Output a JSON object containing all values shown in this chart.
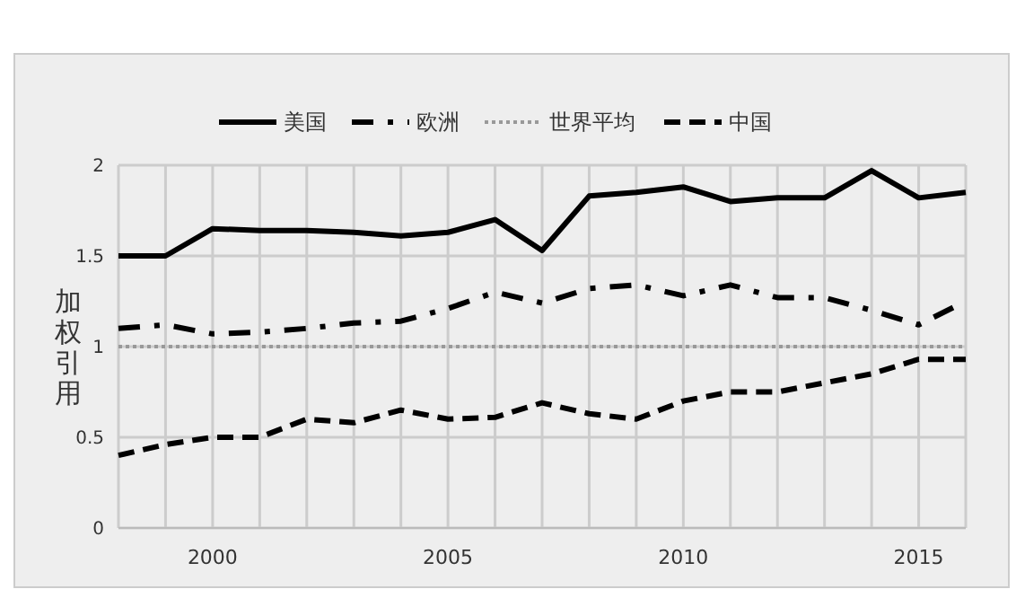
{
  "chart_data": {
    "type": "line",
    "ylabel": "加权引用",
    "x": [
      1998,
      1999,
      2000,
      2001,
      2002,
      2003,
      2004,
      2005,
      2006,
      2007,
      2008,
      2009,
      2010,
      2011,
      2012,
      2013,
      2014,
      2015,
      2016
    ],
    "series": [
      {
        "name": "美国",
        "color": "#000000",
        "line_style": "solid",
        "values": [
          1.5,
          1.5,
          1.65,
          1.64,
          1.64,
          1.63,
          1.61,
          1.63,
          1.7,
          1.53,
          1.83,
          1.85,
          1.88,
          1.8,
          1.82,
          1.82,
          1.97,
          1.82,
          1.85
        ]
      },
      {
        "name": "欧洲",
        "color": "#000000",
        "line_style": "dashdot",
        "values": [
          1.1,
          1.12,
          1.07,
          1.08,
          1.1,
          1.13,
          1.14,
          1.21,
          1.3,
          1.24,
          1.32,
          1.34,
          1.28,
          1.34,
          1.27,
          1.27,
          1.2,
          1.12,
          1.25
        ]
      },
      {
        "name": "世界平均",
        "color": "#999999",
        "line_style": "dotted",
        "values": [
          1,
          1,
          1,
          1,
          1,
          1,
          1,
          1,
          1,
          1,
          1,
          1,
          1,
          1,
          1,
          1,
          1,
          1,
          1
        ]
      },
      {
        "name": "中国",
        "color": "#000000",
        "line_style": "dashed",
        "values": [
          0.4,
          0.46,
          0.5,
          0.5,
          0.6,
          0.58,
          0.65,
          0.6,
          0.61,
          0.69,
          0.63,
          0.6,
          0.7,
          0.75,
          0.75,
          0.8,
          0.85,
          0.93,
          0.93
        ]
      }
    ],
    "xlim": [
      1998,
      2016
    ],
    "xticks": [
      {
        "value": 1998,
        "label": null
      },
      {
        "value": 1999,
        "label": null
      },
      2000,
      {
        "value": 2001,
        "label": null
      },
      {
        "value": 2002,
        "label": null
      },
      {
        "value": 2003,
        "label": null
      },
      {
        "value": 2004,
        "label": null
      },
      2005,
      {
        "value": 2006,
        "label": null
      },
      {
        "value": 2007,
        "label": null
      },
      {
        "value": 2008,
        "label": null
      },
      {
        "value": 2009,
        "label": null
      },
      2010,
      {
        "value": 2011,
        "label": null
      },
      {
        "value": 2012,
        "label": null
      },
      {
        "value": 2013,
        "label": null
      },
      {
        "value": 2014,
        "label": null
      },
      2015,
      {
        "value": 2016,
        "label": null
      }
    ],
    "ylim": [
      0,
      2
    ],
    "yticks": [
      0,
      0.5,
      1,
      1.5,
      2
    ],
    "grid": true,
    "legend": "top",
    "marker": "none"
  }
}
